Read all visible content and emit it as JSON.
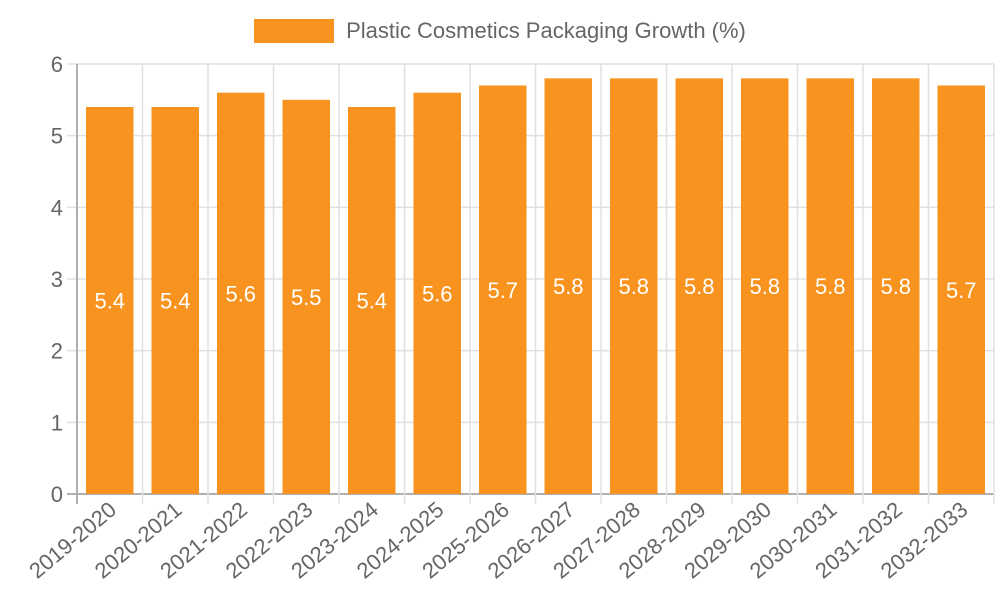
{
  "chart_data": {
    "type": "bar",
    "title": "",
    "legend": [
      {
        "label": "Plastic Cosmetics Packaging Growth (%)",
        "color": "#f7931e"
      }
    ],
    "legend_position": "top",
    "xlabel": "",
    "ylabel": "",
    "ylim": [
      0,
      6
    ],
    "yticks": [
      0,
      1,
      2,
      3,
      4,
      5,
      6
    ],
    "grid": true,
    "categories": [
      "2019-2020",
      "2020-2021",
      "2021-2022",
      "2022-2023",
      "2023-2024",
      "2024-2025",
      "2025-2026",
      "2026-2027",
      "2027-2028",
      "2028-2029",
      "2029-2030",
      "2030-2031",
      "2031-2032",
      "2032-2033"
    ],
    "series": [
      {
        "name": "Plastic Cosmetics Packaging Growth (%)",
        "color": "#f7931e",
        "values": [
          5.4,
          5.4,
          5.6,
          5.5,
          5.4,
          5.6,
          5.7,
          5.8,
          5.8,
          5.8,
          5.8,
          5.8,
          5.8,
          5.7
        ]
      }
    ],
    "data_labels": true
  },
  "legend": {
    "label": "Plastic Cosmetics Packaging Growth (%)",
    "color": "#f7931e"
  },
  "colors": {
    "bar": "#f7931e",
    "grid": "#e0e0e0",
    "axis": "#b0b0b0",
    "text": "#666666"
  }
}
